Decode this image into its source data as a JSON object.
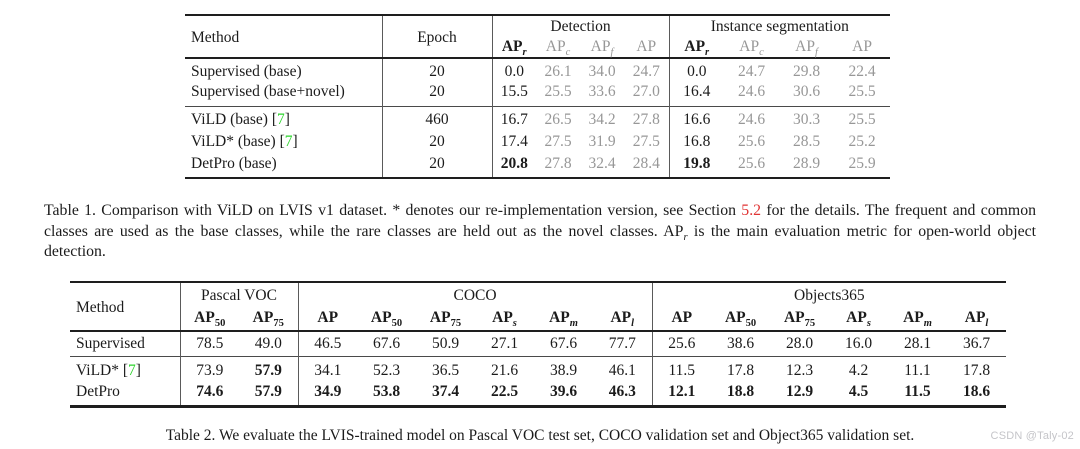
{
  "colors": {
    "text": "#1b1b1b",
    "muted": "#979797",
    "citation_green": "#2ed52e",
    "section_red": "#e03333",
    "watermark": "#c5c5c9"
  },
  "table1": {
    "headers": {
      "method": "Method",
      "epoch": "Epoch",
      "groups": [
        {
          "label": "Detection"
        },
        {
          "label": "Instance segmentation"
        }
      ],
      "sub": [
        {
          "base": "AP",
          "sub": "r",
          "emph": true
        },
        {
          "base": "AP",
          "sub": "c",
          "muted": true
        },
        {
          "base": "AP",
          "sub": "f",
          "muted": true
        },
        {
          "base": "AP",
          "sub": "",
          "muted": true
        }
      ]
    },
    "row_groups": [
      {
        "rows": [
          {
            "method": "Supervised (base)",
            "cite": "",
            "epoch": "20",
            "det": [
              "0.0",
              "26.1",
              "34.0",
              "24.7"
            ],
            "seg": [
              "0.0",
              "24.7",
              "29.8",
              "22.4"
            ]
          },
          {
            "method": "Supervised (base+novel)",
            "cite": "",
            "epoch": "20",
            "det": [
              "15.5",
              "25.5",
              "33.6",
              "27.0"
            ],
            "seg": [
              "16.4",
              "24.6",
              "30.6",
              "25.5"
            ]
          }
        ]
      },
      {
        "rows": [
          {
            "method": "ViLD (base)",
            "cite": "7",
            "epoch": "460",
            "det": [
              "16.7",
              "26.5",
              "34.2",
              "27.8"
            ],
            "seg": [
              "16.6",
              "24.6",
              "30.3",
              "25.5"
            ]
          },
          {
            "method": "ViLD* (base)",
            "cite": "7",
            "epoch": "20",
            "det": [
              "17.4",
              "27.5",
              "31.9",
              "27.5"
            ],
            "seg": [
              "16.8",
              "25.6",
              "28.5",
              "25.2"
            ]
          },
          {
            "method": "DetPro (base)",
            "cite": "",
            "epoch": "20",
            "det": [
              {
                "v": "20.8",
                "bold": true
              },
              "27.8",
              "32.4",
              "28.4"
            ],
            "seg": [
              {
                "v": "19.8",
                "bold": true
              },
              "25.6",
              "28.9",
              "25.9"
            ]
          }
        ]
      }
    ]
  },
  "caption1": {
    "segments": [
      {
        "t": "Table 1. Comparison with ViLD on LVIS v1 dataset. * denotes our re-implementation version, see Section "
      },
      {
        "t": "5.2",
        "style": "red"
      },
      {
        "t": " for the details. The frequent and common classes are used as the base classes, while the rare classes are held out as the novel classes. AP"
      },
      {
        "t": "r",
        "style": "sub"
      },
      {
        "t": " is the main evaluation metric for open-world object detection."
      }
    ]
  },
  "table2": {
    "headers": {
      "method": "Method",
      "groups": [
        {
          "label": "Pascal VOC",
          "cols": 2
        },
        {
          "label": "COCO",
          "cols": 6
        },
        {
          "label": "Objects365",
          "cols": 6
        }
      ],
      "sub": [
        {
          "base": "AP",
          "sub": "50"
        },
        {
          "base": "AP",
          "sub": "75"
        },
        {
          "base": "AP",
          "sub": ""
        },
        {
          "base": "AP",
          "sub": "50"
        },
        {
          "base": "AP",
          "sub": "75"
        },
        {
          "base": "AP",
          "sub": "s"
        },
        {
          "base": "AP",
          "sub": "m"
        },
        {
          "base": "AP",
          "sub": "l"
        },
        {
          "base": "AP",
          "sub": ""
        },
        {
          "base": "AP",
          "sub": "50"
        },
        {
          "base": "AP",
          "sub": "75"
        },
        {
          "base": "AP",
          "sub": "s"
        },
        {
          "base": "AP",
          "sub": "m"
        },
        {
          "base": "AP",
          "sub": "l"
        }
      ]
    },
    "row_groups": [
      {
        "rows": [
          {
            "method": "Supervised",
            "cite": "",
            "values": [
              "78.5",
              "49.0",
              "46.5",
              "67.6",
              "50.9",
              "27.1",
              "67.6",
              "77.7",
              "25.6",
              "38.6",
              "28.0",
              "16.0",
              "28.1",
              "36.7"
            ]
          }
        ]
      },
      {
        "rows": [
          {
            "method": "ViLD*",
            "cite": "7",
            "values": [
              "73.9",
              {
                "v": "57.9",
                "bold": true
              },
              "34.1",
              "52.3",
              "36.5",
              "21.6",
              "38.9",
              "46.1",
              "11.5",
              "17.8",
              "12.3",
              "4.2",
              "11.1",
              "17.8"
            ]
          },
          {
            "method": "DetPro",
            "cite": "",
            "values": [
              {
                "v": "74.6",
                "bold": true
              },
              {
                "v": "57.9",
                "bold": true
              },
              {
                "v": "34.9",
                "bold": true
              },
              {
                "v": "53.8",
                "bold": true
              },
              {
                "v": "37.4",
                "bold": true
              },
              {
                "v": "22.5",
                "bold": true
              },
              {
                "v": "39.6",
                "bold": true
              },
              {
                "v": "46.3",
                "bold": true
              },
              {
                "v": "12.1",
                "bold": true
              },
              {
                "v": "18.8",
                "bold": true
              },
              {
                "v": "12.9",
                "bold": true
              },
              {
                "v": "4.5",
                "bold": true
              },
              {
                "v": "11.5",
                "bold": true
              },
              {
                "v": "18.6",
                "bold": true
              }
            ]
          }
        ]
      }
    ]
  },
  "caption2": {
    "text": "Table 2. We evaluate the LVIS-trained model on Pascal VOC test set, COCO validation set and Object365 validation set."
  },
  "watermark": {
    "text": "CSDN @Taly-02"
  }
}
